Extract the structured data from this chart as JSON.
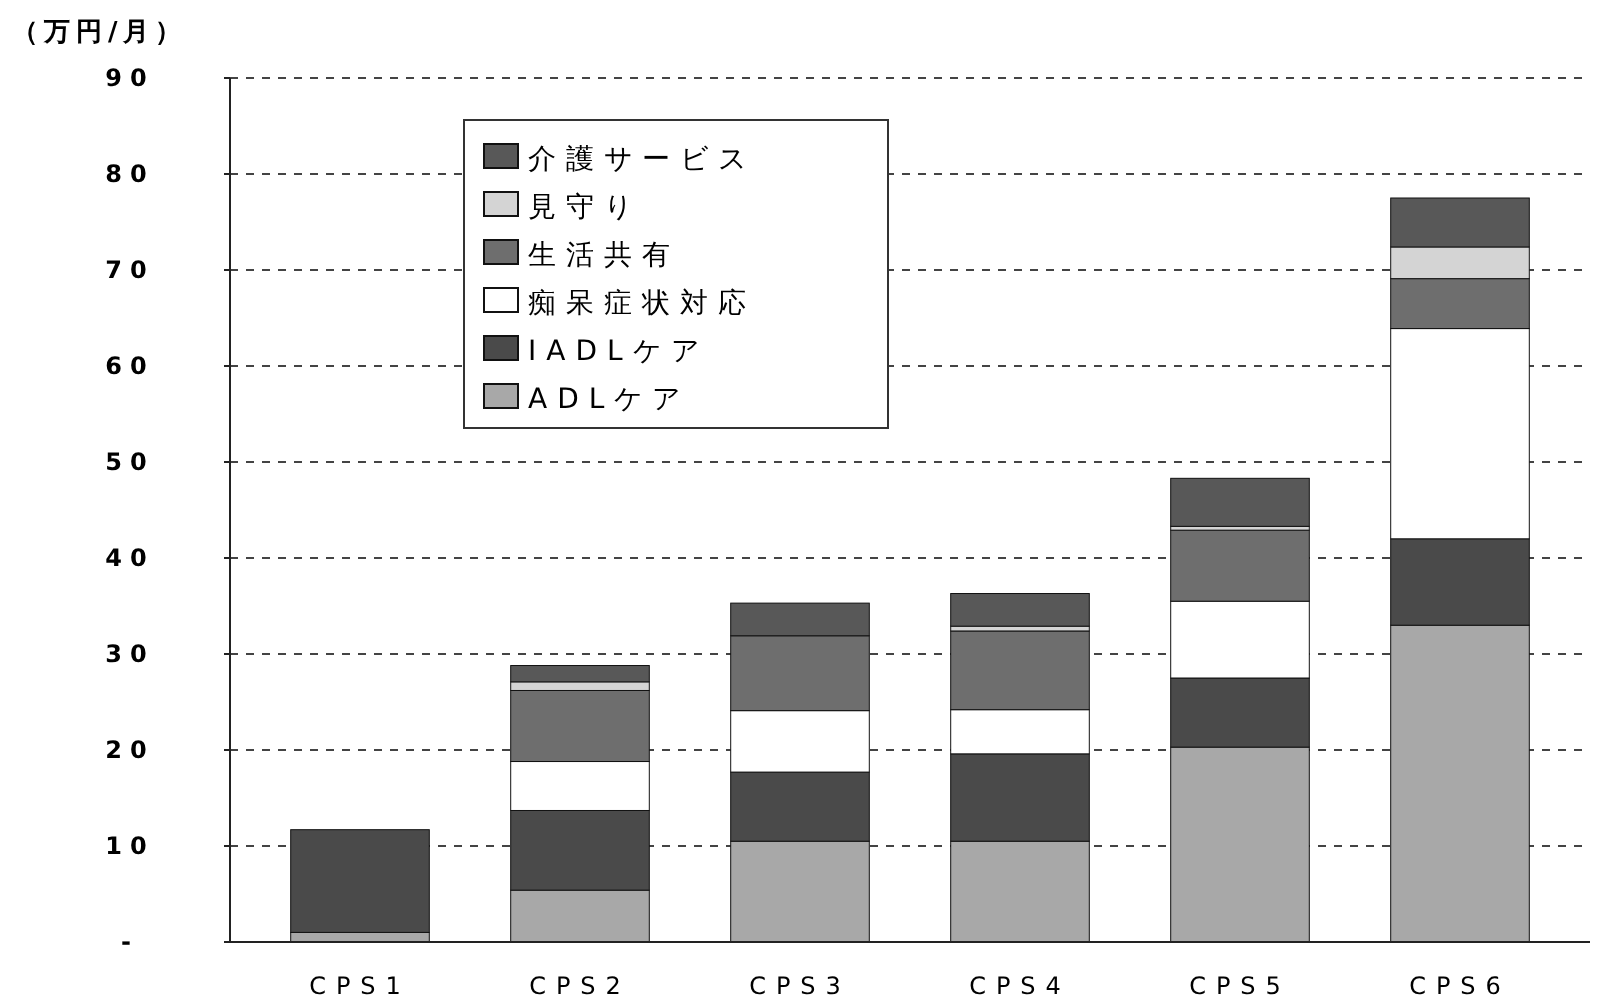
{
  "chart_data": {
    "type": "bar",
    "stacked": true,
    "ylabel": "（万円/月）",
    "categories": [
      "CPS1",
      "CPS2",
      "CPS3",
      "CPS4",
      "CPS5",
      "CPS6"
    ],
    "series": [
      {
        "name": "ADLケア",
        "color": "#a8a8a8",
        "values": [
          1.0,
          5.4,
          10.5,
          10.5,
          20.3,
          33.0
        ]
      },
      {
        "name": "IADLケア",
        "color": "#4a4a4a",
        "values": [
          10.7,
          8.3,
          7.2,
          9.1,
          7.2,
          9.0
        ]
      },
      {
        "name": "痴呆症状対応",
        "color": "#ffffff",
        "values": [
          0,
          5.1,
          6.4,
          4.6,
          8.0,
          21.9
        ]
      },
      {
        "name": "生活共有",
        "color": "#6e6e6e",
        "values": [
          0,
          7.4,
          7.8,
          8.2,
          7.4,
          5.2
        ]
      },
      {
        "name": "見守り",
        "color": "#d4d4d4",
        "values": [
          0,
          0.9,
          0,
          0.5,
          0.4,
          3.3
        ]
      },
      {
        "name": "介護サービス",
        "color": "#585858",
        "values": [
          0,
          1.7,
          3.4,
          3.4,
          5.0,
          5.1
        ]
      }
    ],
    "ylim": [
      0,
      90
    ],
    "yticks": [
      {
        "value": 0,
        "label": "-"
      },
      10,
      20,
      30,
      40,
      50,
      60,
      70,
      80,
      90
    ],
    "grid": "y",
    "legend": "top"
  }
}
